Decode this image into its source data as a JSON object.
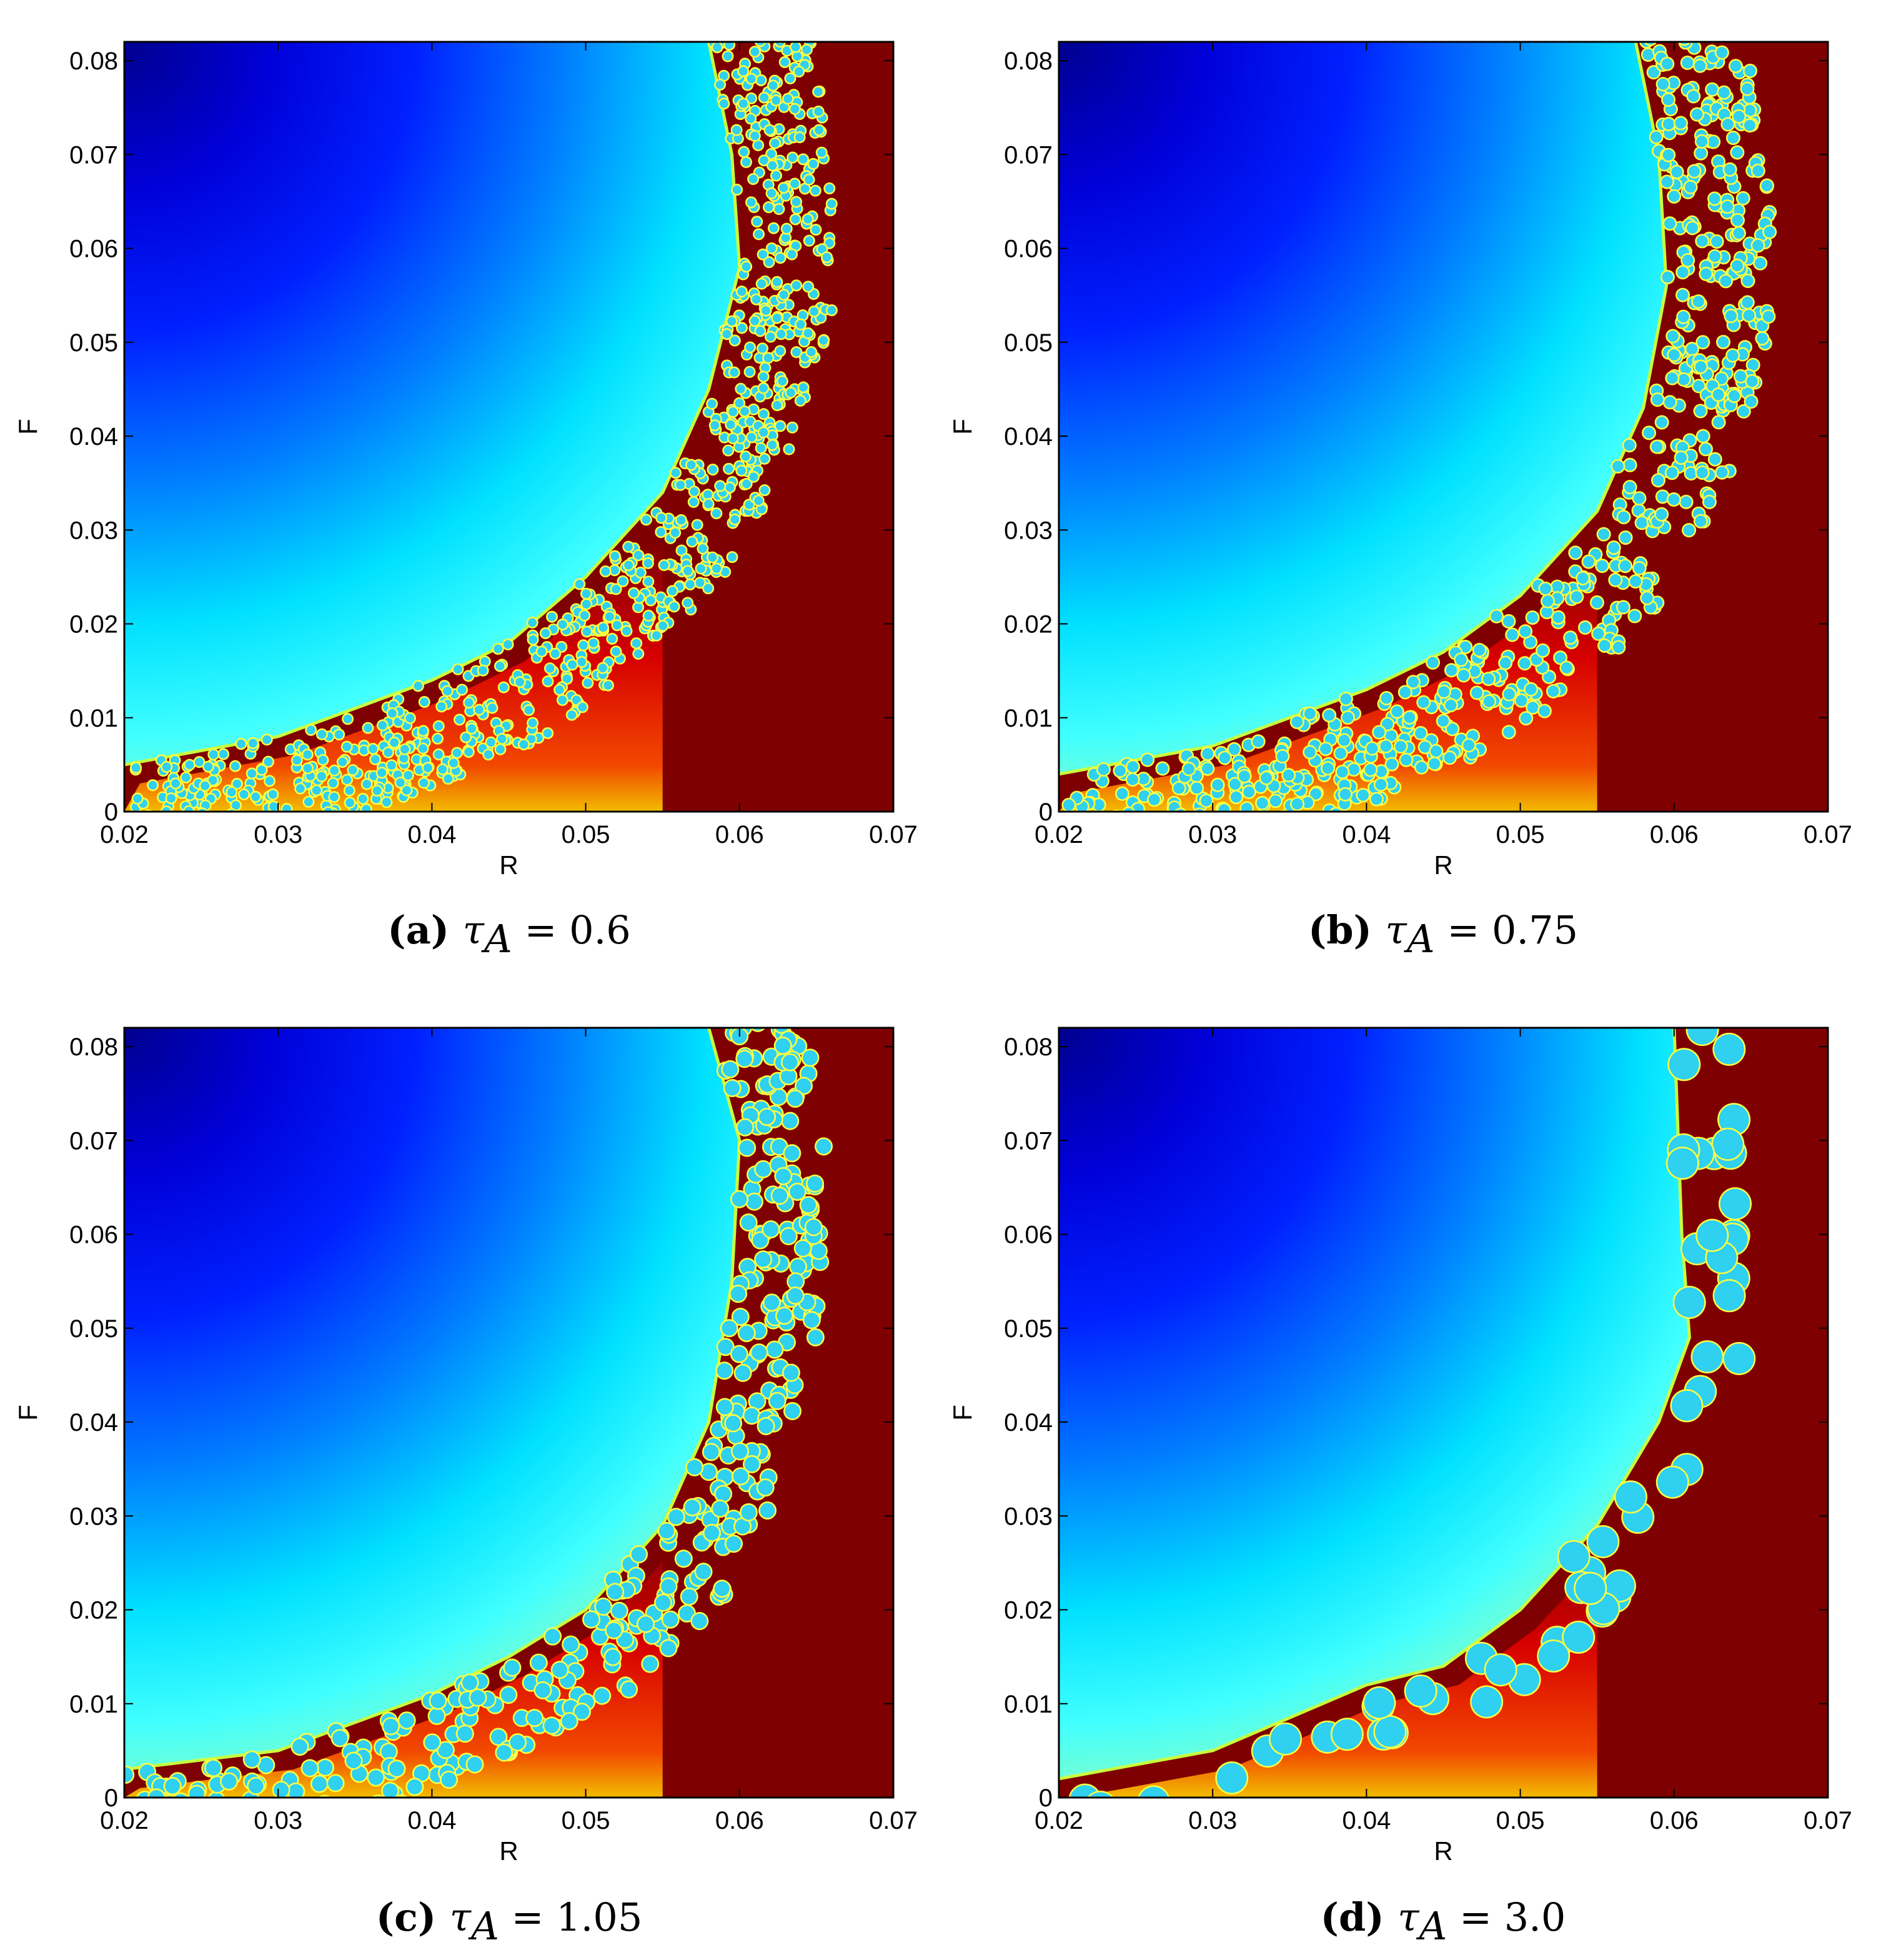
{
  "colors": {
    "red_region": "#7f0000",
    "background": "#ffffff",
    "jet_low": "#00008f",
    "jet_mid": "#00ffff",
    "jet_high": "#ff0000"
  },
  "chart_data": [
    {
      "type": "heatmap",
      "caption": {
        "label": "(a)",
        "symbol": "τ",
        "subscript": "A",
        "equals": " = ",
        "value": "0.6"
      },
      "parameter": {
        "tau_A": 0.6
      },
      "xlabel": "R",
      "ylabel": "F",
      "xlim": [
        0.02,
        0.07
      ],
      "ylim": [
        0,
        0.082
      ],
      "xticks": [
        "0.02",
        "0.03",
        "0.04",
        "0.05",
        "0.06",
        "0.07"
      ],
      "yticks": [
        "0",
        "0.01",
        "0.02",
        "0.03",
        "0.04",
        "0.05",
        "0.06",
        "0.07",
        "0.08"
      ],
      "colormap": "jet",
      "boundary": [
        [
          0.02,
          0.005
        ],
        [
          0.03,
          0.008
        ],
        [
          0.04,
          0.014
        ],
        [
          0.045,
          0.018
        ],
        [
          0.05,
          0.025
        ],
        [
          0.055,
          0.034
        ],
        [
          0.058,
          0.045
        ],
        [
          0.06,
          0.058
        ],
        [
          0.0595,
          0.07
        ],
        [
          0.058,
          0.082
        ]
      ],
      "pattern_band_width": 0.0065,
      "grid": false
    },
    {
      "type": "heatmap",
      "caption": {
        "label": "(b)",
        "symbol": "τ",
        "subscript": "A",
        "equals": " = ",
        "value": "0.75"
      },
      "parameter": {
        "tau_A": 0.75
      },
      "xlabel": "R",
      "ylabel": "F",
      "xlim": [
        0.02,
        0.07
      ],
      "ylim": [
        0,
        0.082
      ],
      "xticks": [
        "0.02",
        "0.03",
        "0.04",
        "0.05",
        "0.06",
        "0.07"
      ],
      "yticks": [
        "0",
        "0.01",
        "0.02",
        "0.03",
        "0.04",
        "0.05",
        "0.06",
        "0.07",
        "0.08"
      ],
      "colormap": "jet",
      "boundary": [
        [
          0.02,
          0.004
        ],
        [
          0.03,
          0.007
        ],
        [
          0.04,
          0.013
        ],
        [
          0.045,
          0.017
        ],
        [
          0.05,
          0.023
        ],
        [
          0.055,
          0.032
        ],
        [
          0.058,
          0.043
        ],
        [
          0.0595,
          0.056
        ],
        [
          0.059,
          0.07
        ],
        [
          0.0575,
          0.082
        ]
      ],
      "pattern_band_width": 0.007,
      "grid": false
    },
    {
      "type": "heatmap",
      "caption": {
        "label": "(c)",
        "symbol": "τ",
        "subscript": "A",
        "equals": " = ",
        "value": "1.05"
      },
      "parameter": {
        "tau_A": 1.05
      },
      "xlabel": "R",
      "ylabel": "F",
      "xlim": [
        0.02,
        0.07
      ],
      "ylim": [
        0,
        0.082
      ],
      "xticks": [
        "0.02",
        "0.03",
        "0.04",
        "0.05",
        "0.06",
        "0.07"
      ],
      "yticks": [
        "0",
        "0.01",
        "0.02",
        "0.03",
        "0.04",
        "0.05",
        "0.06",
        "0.07",
        "0.08"
      ],
      "colormap": "jet",
      "boundary": [
        [
          0.02,
          0.003
        ],
        [
          0.03,
          0.005
        ],
        [
          0.04,
          0.011
        ],
        [
          0.045,
          0.015
        ],
        [
          0.05,
          0.02
        ],
        [
          0.055,
          0.029
        ],
        [
          0.058,
          0.04
        ],
        [
          0.0595,
          0.055
        ],
        [
          0.06,
          0.07
        ],
        [
          0.058,
          0.082
        ]
      ],
      "pattern_band_width": 0.006,
      "grid": false
    },
    {
      "type": "heatmap",
      "caption": {
        "label": "(d)",
        "symbol": "τ",
        "subscript": "A",
        "equals": " = ",
        "value": "3.0"
      },
      "parameter": {
        "tau_A": 3.0
      },
      "xlabel": "R",
      "ylabel": "F",
      "xlim": [
        0.02,
        0.07
      ],
      "ylim": [
        0,
        0.082
      ],
      "xticks": [
        "0.02",
        "0.03",
        "0.04",
        "0.05",
        "0.06",
        "0.07"
      ],
      "yticks": [
        "0",
        "0.01",
        "0.02",
        "0.03",
        "0.04",
        "0.05",
        "0.06",
        "0.07",
        "0.08"
      ],
      "colormap": "jet",
      "boundary": [
        [
          0.02,
          0.002
        ],
        [
          0.03,
          0.005
        ],
        [
          0.04,
          0.012
        ],
        [
          0.045,
          0.014
        ],
        [
          0.05,
          0.02
        ],
        [
          0.055,
          0.029
        ],
        [
          0.059,
          0.04
        ],
        [
          0.061,
          0.049
        ],
        [
          0.0605,
          0.06
        ],
        [
          0.06,
          0.082
        ]
      ],
      "pattern_band_width": 0.004,
      "grid": false
    }
  ]
}
